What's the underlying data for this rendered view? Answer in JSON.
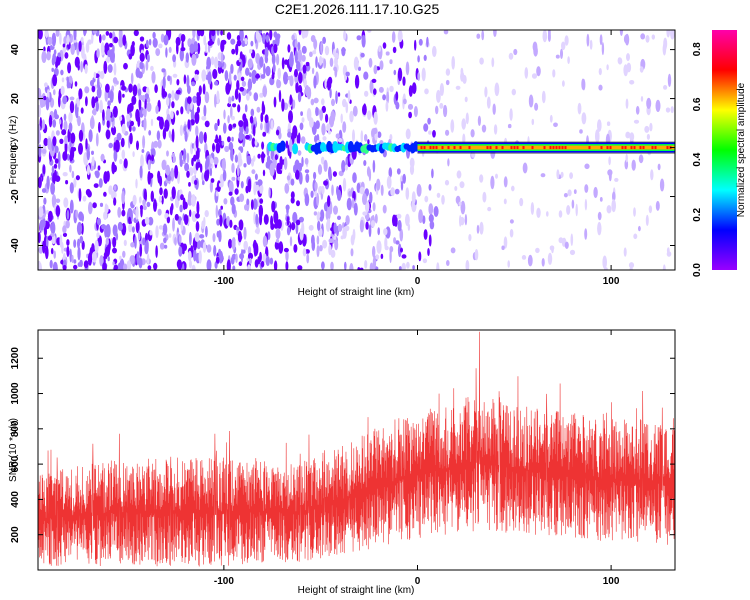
{
  "title": "C2E1.2026.111.17.10.G25",
  "colors": {
    "line": "#ee3333",
    "speckle": [
      "#6a00ff",
      "#a07aff",
      "#c3a9ff",
      "#e1d4ff"
    ],
    "colormap": [
      "#9900ff",
      "#0000ff",
      "#00ffff",
      "#00ff00",
      "#ffff00",
      "#ff0000",
      "#ff00aa"
    ]
  },
  "chart_data": [
    {
      "type": "heatmap",
      "xlabel": "Height of straight line (km)",
      "ylabel": "Frequency (Hz)",
      "xlim": [
        -196,
        133
      ],
      "ylim": [
        -50,
        48
      ],
      "xticks": [
        -100,
        0,
        100
      ],
      "yticks": [
        -40,
        -20,
        0,
        20,
        40
      ],
      "colorbar": {
        "label": "Normalized spectral amplitude",
        "range": [
          0,
          0.87
        ],
        "ticks": [
          0.0,
          0.2,
          0.4,
          0.6,
          0.8
        ]
      },
      "features": {
        "noise_dense_until_km": -60,
        "noise_fade_until_km": 10,
        "tone_frequency_hz": 0,
        "tone_start_km": -76,
        "tone_strong_from_km": 0
      }
    },
    {
      "type": "line",
      "xlabel": "Height of straight line (km)",
      "ylabel": "SNR (10 * v/v)",
      "xlim": [
        -196,
        133
      ],
      "ylim": [
        0,
        1360
      ],
      "xticks": [
        -100,
        0,
        100
      ],
      "yticks": [
        200,
        400,
        600,
        800,
        1000,
        1200
      ],
      "series_shape": {
        "x": [
          -196,
          -150,
          -100,
          -60,
          -40,
          -20,
          0,
          30,
          60,
          100,
          133
        ],
        "upper_envelope": [
          560,
          640,
          640,
          620,
          700,
          820,
          900,
          1000,
          920,
          860,
          860
        ],
        "lower_floor": [
          20,
          20,
          20,
          40,
          80,
          130,
          180,
          220,
          200,
          160,
          140
        ],
        "peak": {
          "x": 32,
          "y": 1350
        }
      }
    }
  ]
}
